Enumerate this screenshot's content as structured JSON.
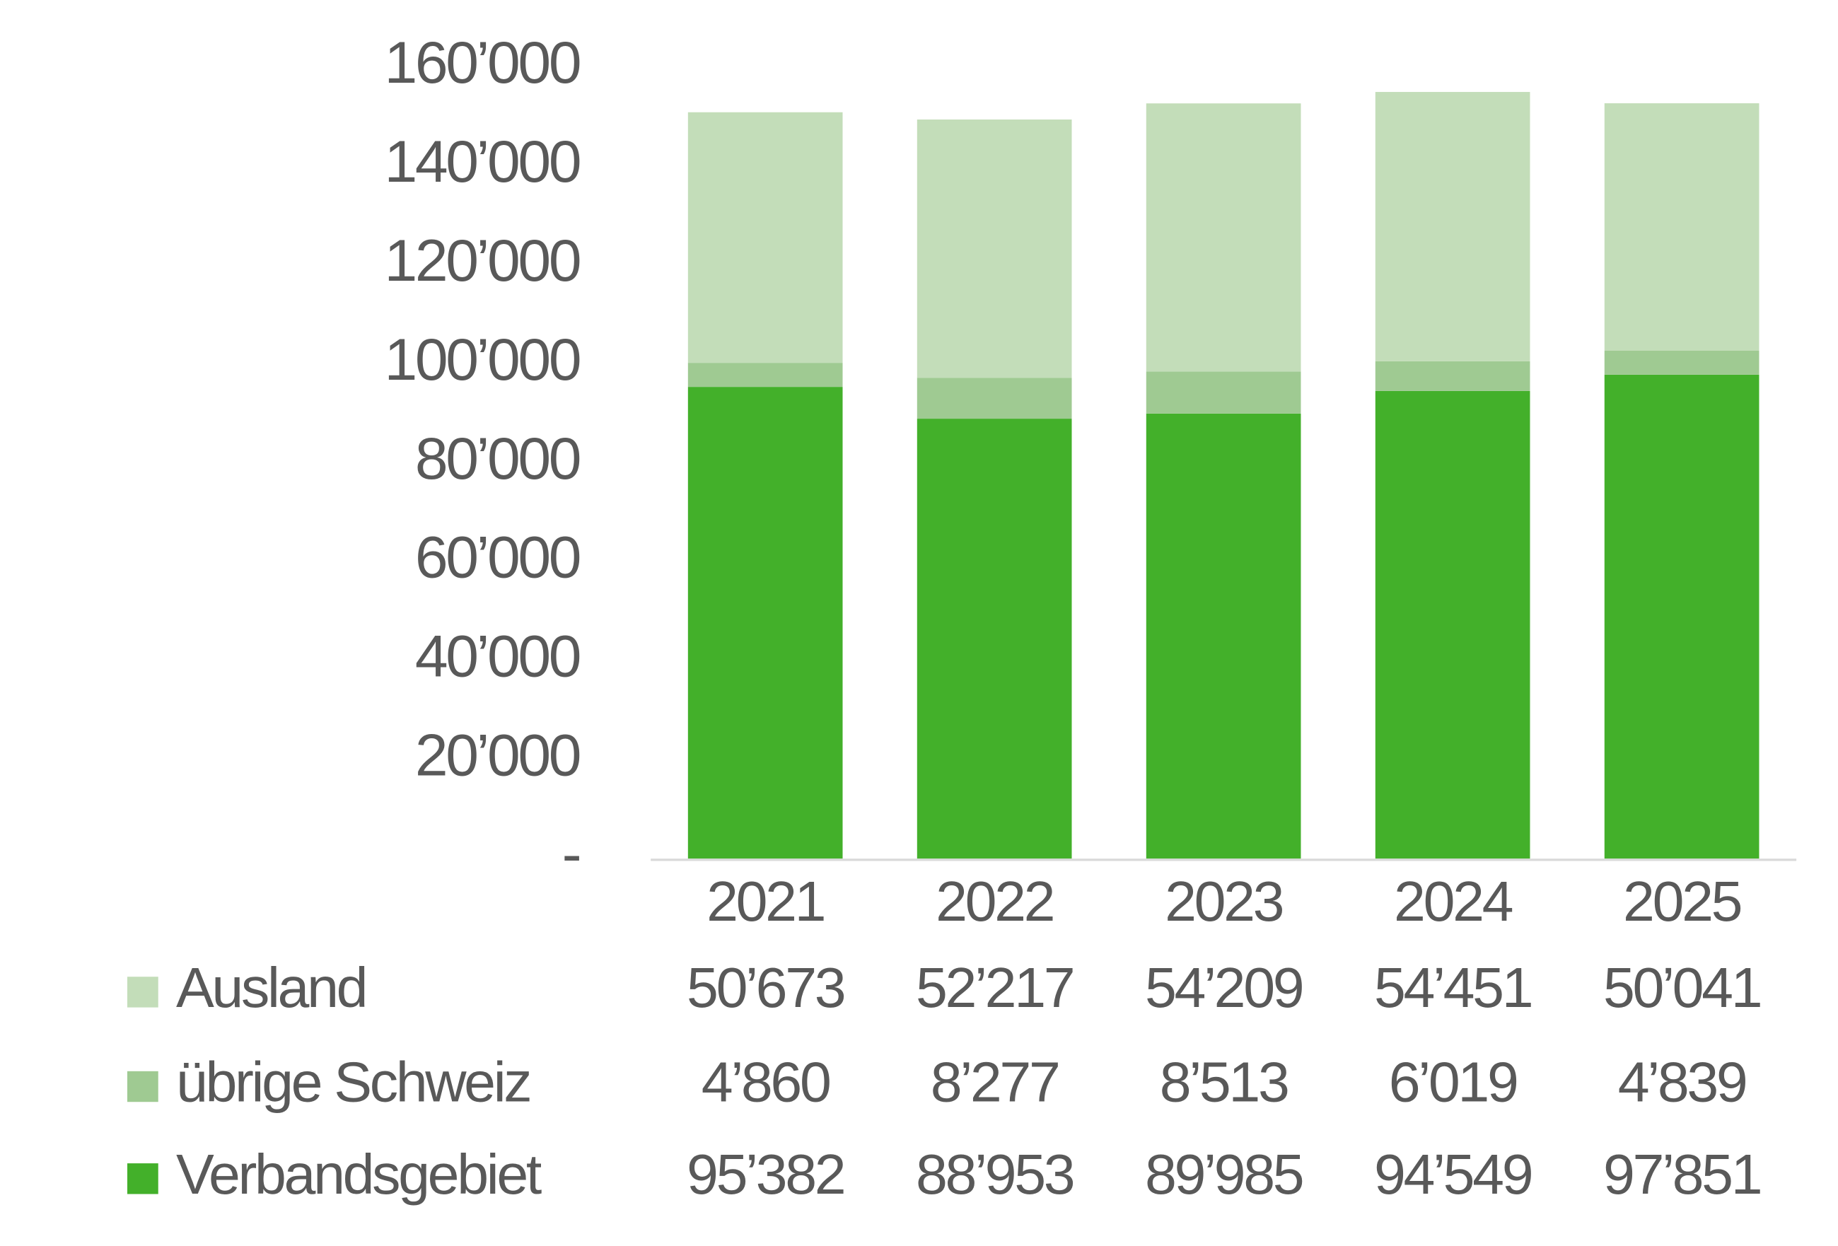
{
  "chart_data": {
    "type": "stacked_bar",
    "categories": [
      "2021",
      "2022",
      "2023",
      "2024",
      "2025"
    ],
    "series": [
      {
        "name": "Ausland",
        "color": "#c3ddb9",
        "values": [
          50673,
          52217,
          54209,
          54451,
          50041
        ],
        "value_labels": [
          "50’673",
          "52’217",
          "54’209",
          "54’451",
          "50’041"
        ]
      },
      {
        "name": "übrige Schweiz",
        "color": "#9fca92",
        "values": [
          4860,
          8277,
          8513,
          6019,
          4839
        ],
        "value_labels": [
          "4’860",
          "8’277",
          "8’513",
          "6’019",
          "4’839"
        ]
      },
      {
        "name": "Verbandsgebiet",
        "color": "#43b02a",
        "values": [
          95382,
          88953,
          89985,
          94549,
          97851
        ],
        "value_labels": [
          "95’382",
          "88’953",
          "89’985",
          "94’549",
          "97’851"
        ]
      }
    ],
    "ylim": [
      0,
      160000
    ],
    "yticks": [
      {
        "value": 0,
        "label": "-"
      },
      {
        "value": 20000,
        "label": "20’000"
      },
      {
        "value": 40000,
        "label": "40’000"
      },
      {
        "value": 60000,
        "label": "60’000"
      },
      {
        "value": 80000,
        "label": "80’000"
      },
      {
        "value": 100000,
        "label": "100’000"
      },
      {
        "value": 120000,
        "label": "120’000"
      },
      {
        "value": 140000,
        "label": "140’000"
      },
      {
        "value": 160000,
        "label": "160’000"
      }
    ],
    "grid": false
  }
}
